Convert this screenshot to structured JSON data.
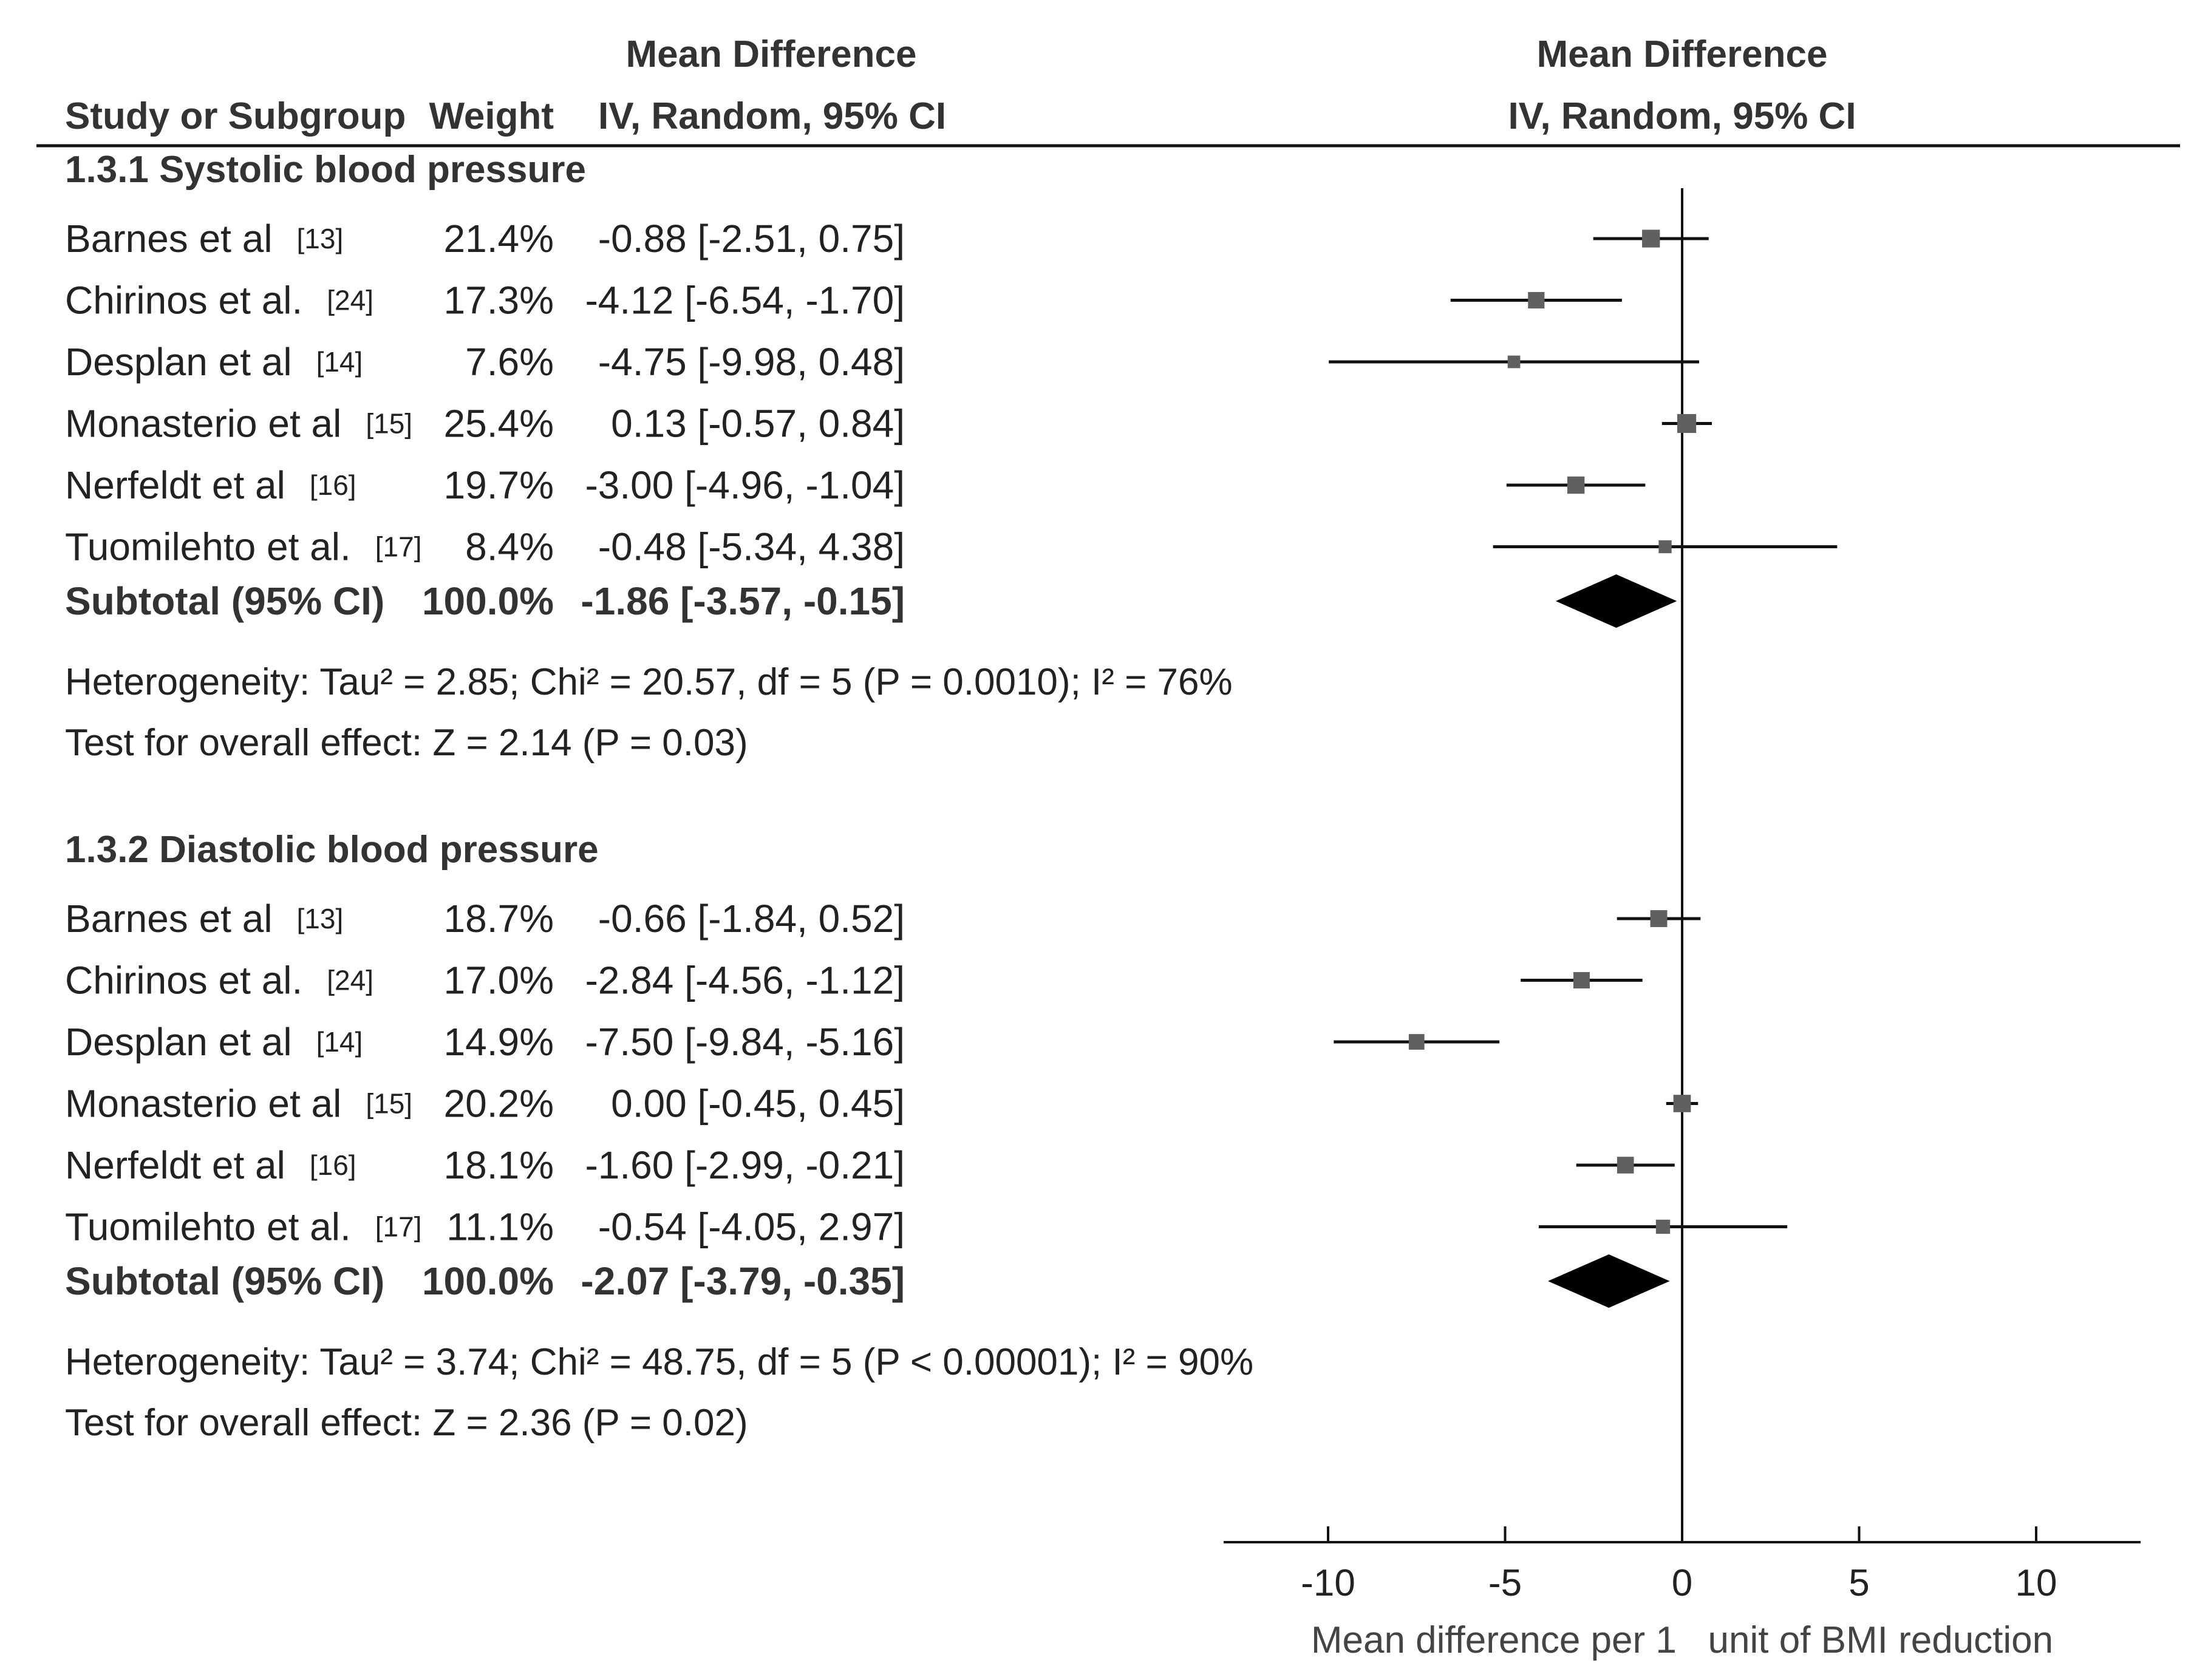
{
  "headers": {
    "study": "Study or Subgroup",
    "weight": "Weight",
    "md_title": "Mean Difference",
    "md_method": "IV, Random, 95% CI",
    "plot_title": "Mean Difference",
    "plot_method": "IV, Random, 95% CI"
  },
  "chart_data": {
    "type": "forest",
    "x_axis": {
      "range": [
        -13,
        13
      ],
      "ticks": [
        -10,
        -5,
        0,
        5,
        10
      ],
      "tick_labels": [
        "-10",
        "-5",
        "0",
        "5",
        "10"
      ],
      "label": "Mean difference per 1   unit of BMI reduction"
    },
    "marker_color": "#606060",
    "line_color": "#111111",
    "subgroups": [
      {
        "title": "1.3.1 Systolic blood pressure",
        "studies": [
          {
            "name": "Barnes et al",
            "ref": "[13]",
            "weight": 21.4,
            "weight_label": "21.4%",
            "md": -0.88,
            "lo": -2.51,
            "hi": 0.75,
            "ci_label": "-0.88 [-2.51, 0.75]"
          },
          {
            "name": "Chirinos et al.",
            "ref": "[24]",
            "weight": 17.3,
            "weight_label": "17.3%",
            "md": -4.12,
            "lo": -6.54,
            "hi": -1.7,
            "ci_label": "-4.12 [-6.54, -1.70]"
          },
          {
            "name": "Desplan et al",
            "ref": "[14]",
            "weight": 7.6,
            "weight_label": "7.6%",
            "md": -4.75,
            "lo": -9.98,
            "hi": 0.48,
            "ci_label": "-4.75 [-9.98, 0.48]"
          },
          {
            "name": "Monasterio et al",
            "ref": "[15]",
            "weight": 25.4,
            "weight_label": "25.4%",
            "md": 0.13,
            "lo": -0.57,
            "hi": 0.84,
            "ci_label": "0.13 [-0.57, 0.84]"
          },
          {
            "name": "Nerfeldt et al",
            "ref": "[16]",
            "weight": 19.7,
            "weight_label": "19.7%",
            "md": -3.0,
            "lo": -4.96,
            "hi": -1.04,
            "ci_label": "-3.00 [-4.96, -1.04]"
          },
          {
            "name": "Tuomilehto et al.",
            "ref": "[17]",
            "weight": 8.4,
            "weight_label": "8.4%",
            "md": -0.48,
            "lo": -5.34,
            "hi": 4.38,
            "ci_label": "-0.48 [-5.34, 4.38]"
          }
        ],
        "subtotal": {
          "label": "Subtotal (95% CI)",
          "weight_label": "100.0%",
          "md": -1.86,
          "lo": -3.57,
          "hi": -0.15,
          "ci_label": "-1.86 [-3.57, -0.15]"
        },
        "heterogeneity": "Heterogeneity: Tau² = 2.85; Chi² = 20.57, df = 5 (P = 0.0010); I² = 76%",
        "overall": "Test for overall effect: Z = 2.14 (P = 0.03)"
      },
      {
        "title": "1.3.2 Diastolic blood pressure",
        "studies": [
          {
            "name": "Barnes et al",
            "ref": "[13]",
            "weight": 18.7,
            "weight_label": "18.7%",
            "md": -0.66,
            "lo": -1.84,
            "hi": 0.52,
            "ci_label": "-0.66 [-1.84, 0.52]"
          },
          {
            "name": "Chirinos et al.",
            "ref": "[24]",
            "weight": 17.0,
            "weight_label": "17.0%",
            "md": -2.84,
            "lo": -4.56,
            "hi": -1.12,
            "ci_label": "-2.84 [-4.56, -1.12]"
          },
          {
            "name": "Desplan et al",
            "ref": "[14]",
            "weight": 14.9,
            "weight_label": "14.9%",
            "md": -7.5,
            "lo": -9.84,
            "hi": -5.16,
            "ci_label": "-7.50 [-9.84, -5.16]"
          },
          {
            "name": "Monasterio et al",
            "ref": "[15]",
            "weight": 20.2,
            "weight_label": "20.2%",
            "md": 0.0,
            "lo": -0.45,
            "hi": 0.45,
            "ci_label": "0.00 [-0.45, 0.45]"
          },
          {
            "name": "Nerfeldt et al",
            "ref": "[16]",
            "weight": 18.1,
            "weight_label": "18.1%",
            "md": -1.6,
            "lo": -2.99,
            "hi": -0.21,
            "ci_label": "-1.60 [-2.99, -0.21]"
          },
          {
            "name": "Tuomilehto et al.",
            "ref": "[17]",
            "weight": 11.1,
            "weight_label": "11.1%",
            "md": -0.54,
            "lo": -4.05,
            "hi": 2.97,
            "ci_label": "-0.54 [-4.05, 2.97]"
          }
        ],
        "subtotal": {
          "label": "Subtotal (95% CI)",
          "weight_label": "100.0%",
          "md": -2.07,
          "lo": -3.79,
          "hi": -0.35,
          "ci_label": "-2.07 [-3.79, -0.35]"
        },
        "heterogeneity": "Heterogeneity: Tau² = 3.74; Chi² = 48.75, df = 5 (P < 0.00001); I² = 90%",
        "overall": "Test for overall effect: Z = 2.36 (P = 0.02)"
      }
    ]
  }
}
